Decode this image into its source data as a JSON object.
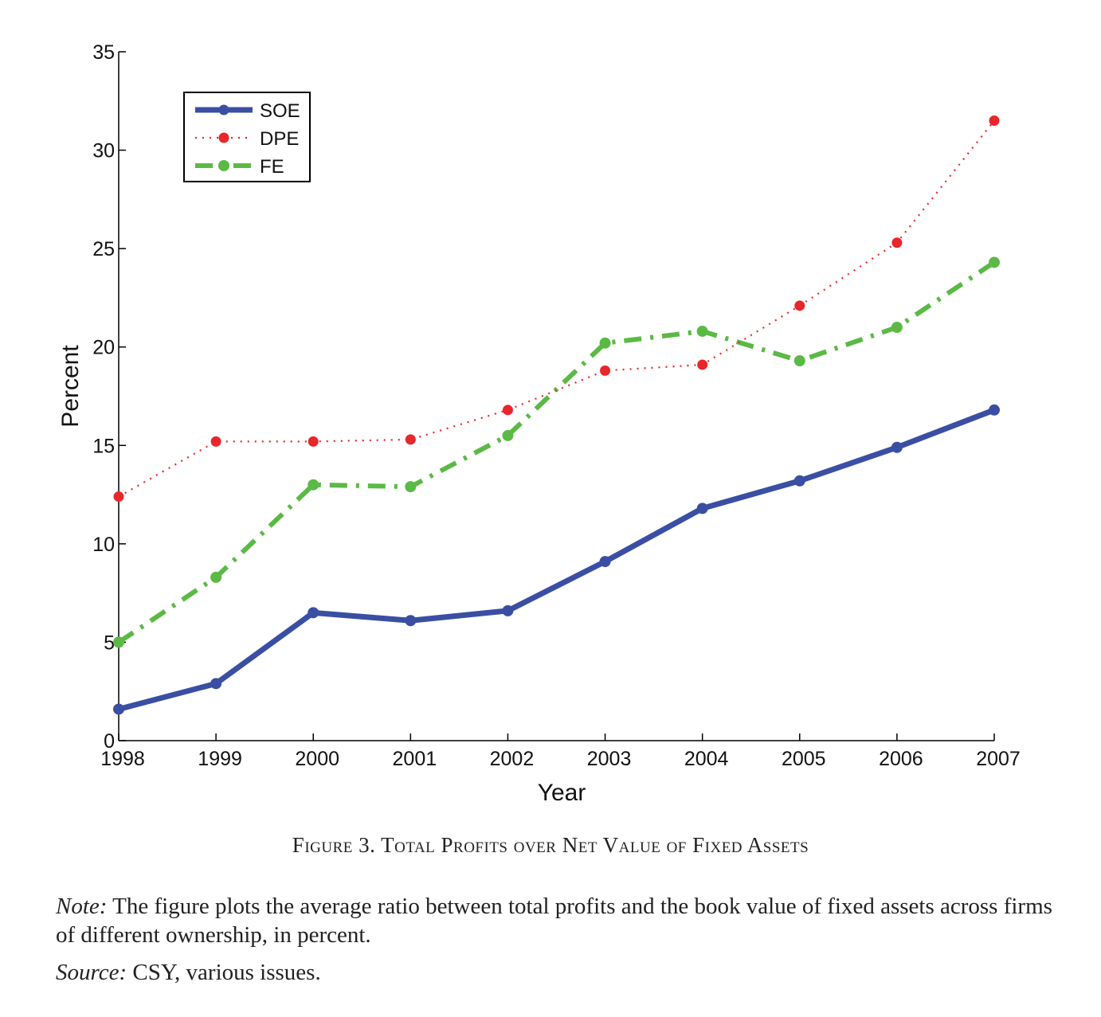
{
  "chart_data": {
    "type": "line",
    "title": "",
    "xlabel": "Year",
    "ylabel": "Percent",
    "x": [
      1998,
      1999,
      2000,
      2001,
      2002,
      2003,
      2004,
      2005,
      2006,
      2007
    ],
    "xticks": [
      "1998",
      "1999",
      "2000",
      "2001",
      "2002",
      "2003",
      "2004",
      "2005",
      "2006",
      "2007"
    ],
    "yticks": [
      "0",
      "5",
      "10",
      "15",
      "20",
      "25",
      "30",
      "35"
    ],
    "ylim": [
      0,
      35
    ],
    "xlim": [
      1998,
      2007
    ],
    "grid": false,
    "legend_position": "top-left",
    "series": [
      {
        "name": "SOE",
        "color": "#3a4fa3",
        "style": "solid",
        "values": [
          1.6,
          2.9,
          6.5,
          6.1,
          6.6,
          9.1,
          11.8,
          13.2,
          14.9,
          16.8
        ]
      },
      {
        "name": "DPE",
        "color": "#e8262b",
        "style": "dotted",
        "values": [
          12.4,
          15.2,
          15.2,
          15.3,
          16.8,
          18.8,
          19.1,
          22.1,
          25.3,
          31.5
        ]
      },
      {
        "name": "FE",
        "color": "#5bb946",
        "style": "dashdot",
        "values": [
          5.0,
          8.3,
          13.0,
          12.9,
          15.5,
          20.2,
          20.8,
          19.3,
          21.0,
          24.3
        ]
      }
    ]
  },
  "caption": {
    "figure_label": "Figure 3.",
    "title": "Total Profits over Net Value of Fixed Assets"
  },
  "note": {
    "lead": "Note:",
    "text": "The figure plots the average ratio between total profits and the book value of fixed assets across firms of different ownership, in percent."
  },
  "source": {
    "lead": "Source:",
    "text": "CSY, various issues."
  }
}
